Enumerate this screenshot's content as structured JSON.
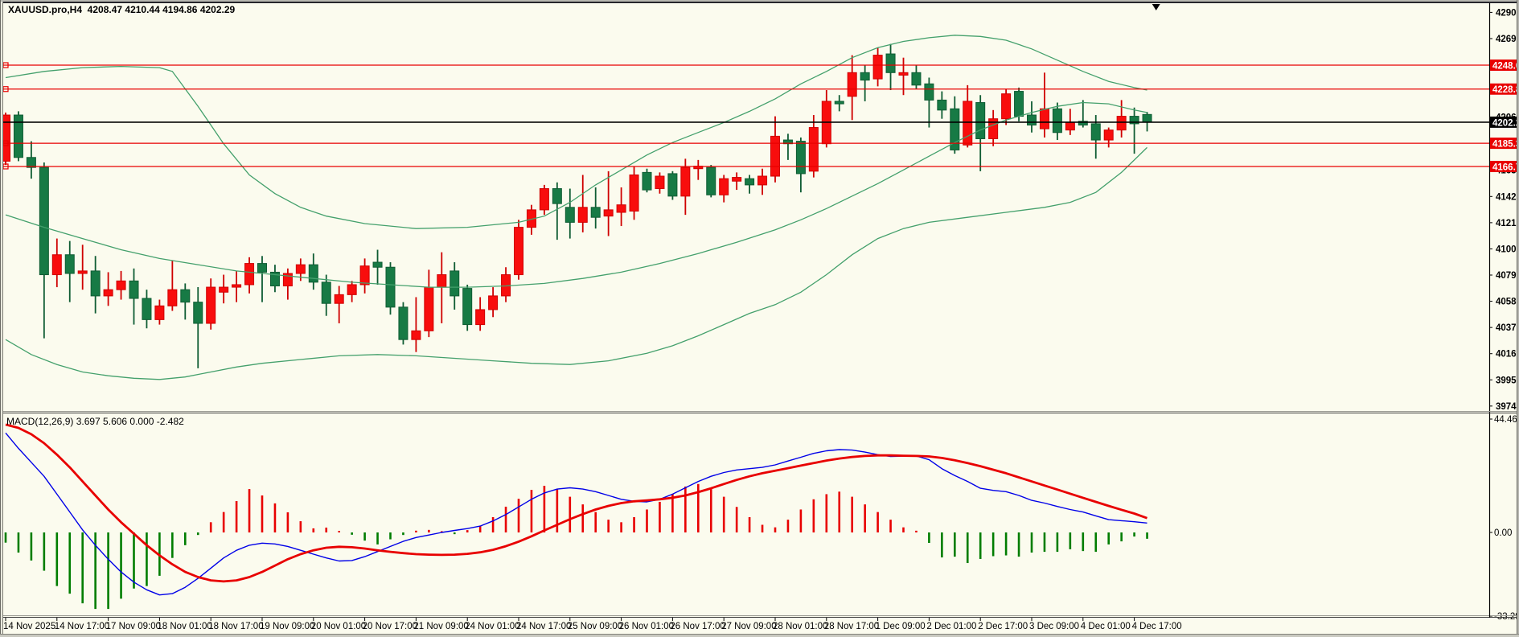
{
  "header": {
    "symbol": "XAUUSD.pro,H4",
    "ohlc_summary": "4208.47 4210.44 4194.86 4202.29"
  },
  "indicator_label": "MACD(12,26,9) 3.697 5.606 0.000 -2.482",
  "colors": {
    "background": "#fbfbee",
    "bull_fill": "#f80d0d",
    "bull_stroke": "#cf0000",
    "bear_fill": "#177a45",
    "bear_stroke": "#0f5c33",
    "bollinger": "#44a06c",
    "level_red": "#e80000",
    "current_price_line": "#000000",
    "macd_main": "#0000e8",
    "macd_signal": "#e80000",
    "hist_positive": "#e80000",
    "hist_negative": "#007d00",
    "axis_text": "#000000",
    "label_text": "#ffffff"
  },
  "chart_data": {
    "type": "candlestick",
    "title": "XAUUSD.pro,H4",
    "symbol": "XAUUSD.pro",
    "timeframe": "H4",
    "current_ohlc": {
      "open": 4208.47,
      "high": 4210.44,
      "low": 4194.86,
      "close": 4202.29
    },
    "ylim_main": [
      3965,
      4300
    ],
    "ylim_macd": [
      -33.296,
      44.466
    ],
    "grid": "off",
    "legend": "none",
    "time_labels": [
      "14 Nov 2025",
      "14 Nov 17:00",
      "17 Nov 09:00",
      "18 Nov 01:00",
      "18 Nov 17:00",
      "19 Nov 09:00",
      "20 Nov 01:00",
      "20 Nov 17:00",
      "21 Nov 09:00",
      "24 Nov 01:00",
      "24 Nov 17:00",
      "25 Nov 09:00",
      "26 Nov 01:00",
      "26 Nov 17:00",
      "27 Nov 09:00",
      "28 Nov 01:00",
      "28 Nov 17:00",
      "1 Dec 09:00",
      "2 Dec 01:00",
      "2 Dec 17:00",
      "3 Dec 09:00",
      "4 Dec 01:00",
      "4 Dec 17:00"
    ],
    "label_every_n_candles": 4,
    "candles": [
      [
        4171,
        4210,
        4168,
        4208
      ],
      [
        4208,
        4211,
        4171,
        4174
      ],
      [
        4174,
        4187,
        4157,
        4166
      ],
      [
        4166,
        4170,
        4029,
        4080
      ],
      [
        4080,
        4109,
        4070,
        4096
      ],
      [
        4096,
        4107,
        4058,
        4081
      ],
      [
        4081,
        4104,
        4068,
        4083
      ],
      [
        4083,
        4095,
        4049,
        4063
      ],
      [
        4063,
        4082,
        4055,
        4068
      ],
      [
        4068,
        4083,
        4060,
        4075
      ],
      [
        4075,
        4085,
        4040,
        4061
      ],
      [
        4061,
        4068,
        4037,
        4044
      ],
      [
        4044,
        4060,
        4040,
        4055
      ],
      [
        4055,
        4091,
        4051,
        4068
      ],
      [
        4068,
        4073,
        4044,
        4058
      ],
      [
        4058,
        4070,
        4005,
        4041
      ],
      [
        4041,
        4077,
        4036,
        4070
      ],
      [
        4066,
        4080,
        4057,
        4070
      ],
      [
        4070,
        4083,
        4058,
        4072
      ],
      [
        4072,
        4094,
        4065,
        4089
      ],
      [
        4089,
        4095,
        4058,
        4082
      ],
      [
        4082,
        4088,
        4066,
        4071
      ],
      [
        4071,
        4085,
        4060,
        4081
      ],
      [
        4081,
        4093,
        4075,
        4088
      ],
      [
        4088,
        4097,
        4068,
        4074
      ],
      [
        4074,
        4080,
        4047,
        4057
      ],
      [
        4057,
        4071,
        4041,
        4064
      ],
      [
        4064,
        4075,
        4058,
        4072
      ],
      [
        4072,
        4093,
        4065,
        4087
      ],
      [
        4090,
        4100,
        4072,
        4086
      ],
      [
        4086,
        4090,
        4048,
        4054
      ],
      [
        4054,
        4058,
        4024,
        4028
      ],
      [
        4028,
        4062,
        4018,
        4035
      ],
      [
        4035,
        4084,
        4030,
        4070
      ],
      [
        4070,
        4098,
        4041,
        4080
      ],
      [
        4083,
        4090,
        4052,
        4063
      ],
      [
        4069,
        4072,
        4035,
        4040
      ],
      [
        4040,
        4062,
        4035,
        4052
      ],
      [
        4052,
        4070,
        4046,
        4063
      ],
      [
        4063,
        4086,
        4058,
        4080
      ],
      [
        4080,
        4124,
        4076,
        4118
      ],
      [
        4118,
        4136,
        4112,
        4132
      ],
      [
        4132,
        4152,
        4128,
        4149
      ],
      [
        4149,
        4154,
        4108,
        4137
      ],
      [
        4134,
        4149,
        4109,
        4122
      ],
      [
        4122,
        4160,
        4114,
        4134
      ],
      [
        4134,
        4150,
        4117,
        4126
      ],
      [
        4127,
        4163,
        4111,
        4132
      ],
      [
        4130,
        4150,
        4119,
        4136
      ],
      [
        4131,
        4167,
        4124,
        4160
      ],
      [
        4162,
        4165,
        4146,
        4148
      ],
      [
        4149,
        4162,
        4145,
        4159
      ],
      [
        4161,
        4163,
        4140,
        4143
      ],
      [
        4143,
        4173,
        4128,
        4166
      ],
      [
        4165,
        4172,
        4156,
        4167
      ],
      [
        4166,
        4168,
        4142,
        4144
      ],
      [
        4144,
        4160,
        4138,
        4157
      ],
      [
        4155,
        4162,
        4148,
        4158
      ],
      [
        4157,
        4160,
        4145,
        4152
      ],
      [
        4152,
        4165,
        4144,
        4159
      ],
      [
        4159,
        4207,
        4154,
        4191
      ],
      [
        4188,
        4193,
        4172,
        4185
      ],
      [
        4187,
        4190,
        4146,
        4161
      ],
      [
        4163,
        4208,
        4158,
        4198
      ],
      [
        4185,
        4228,
        4182,
        4219
      ],
      [
        4219,
        4224,
        4211,
        4217
      ],
      [
        4223,
        4256,
        4204,
        4242
      ],
      [
        4242,
        4248,
        4219,
        4236
      ],
      [
        4237,
        4262,
        4231,
        4256
      ],
      [
        4257,
        4265,
        4228,
        4242
      ],
      [
        4240,
        4254,
        4224,
        4242
      ],
      [
        4242,
        4248,
        4229,
        4232
      ],
      [
        4233,
        4238,
        4198,
        4220
      ],
      [
        4220,
        4227,
        4205,
        4212
      ],
      [
        4213,
        4223,
        4177,
        4180
      ],
      [
        4184,
        4232,
        4182,
        4219
      ],
      [
        4218,
        4224,
        4163,
        4189
      ],
      [
        4189,
        4212,
        4183,
        4205
      ],
      [
        4205,
        4229,
        4200,
        4225
      ],
      [
        4227,
        4230,
        4203,
        4207
      ],
      [
        4208,
        4219,
        4194,
        4200
      ],
      [
        4197,
        4242,
        4190,
        4213
      ],
      [
        4213,
        4218,
        4188,
        4194
      ],
      [
        4196,
        4213,
        4192,
        4202
      ],
      [
        4203,
        4220,
        4198,
        4200
      ],
      [
        4201,
        4208,
        4173,
        4188
      ],
      [
        4188,
        4198,
        4182,
        4196
      ],
      [
        4196,
        4220,
        4190,
        4207
      ],
      [
        4207,
        4214,
        4177,
        4201
      ],
      [
        4208.47,
        4210.44,
        4194.86,
        4202.29
      ]
    ],
    "bollinger_bands": {
      "period_note": "three green lines over candles",
      "upper": [
        [
          0,
          4238
        ],
        [
          3,
          4243
        ],
        [
          6,
          4246
        ],
        [
          9,
          4247
        ],
        [
          12,
          4246
        ],
        [
          13,
          4243
        ],
        [
          15,
          4215
        ],
        [
          17,
          4185
        ],
        [
          19,
          4160
        ],
        [
          21,
          4145
        ],
        [
          23,
          4134
        ],
        [
          25,
          4127
        ],
        [
          28,
          4121
        ],
        [
          32,
          4117
        ],
        [
          36,
          4118
        ],
        [
          40,
          4122
        ],
        [
          42,
          4127
        ],
        [
          44,
          4138
        ],
        [
          46,
          4152
        ],
        [
          48,
          4164
        ],
        [
          50,
          4176
        ],
        [
          52,
          4186
        ],
        [
          54,
          4194
        ],
        [
          56,
          4202
        ],
        [
          58,
          4211
        ],
        [
          60,
          4221
        ],
        [
          62,
          4233
        ],
        [
          64,
          4243
        ],
        [
          66,
          4254
        ],
        [
          68,
          4262
        ],
        [
          70,
          4267
        ],
        [
          72,
          4270
        ],
        [
          74,
          4272
        ],
        [
          76,
          4271
        ],
        [
          78,
          4268
        ],
        [
          80,
          4261
        ],
        [
          82,
          4252
        ],
        [
          84,
          4243
        ],
        [
          86,
          4235
        ],
        [
          88,
          4230
        ],
        [
          89,
          4228
        ]
      ],
      "middle": [
        [
          0,
          4128
        ],
        [
          3,
          4118
        ],
        [
          6,
          4109
        ],
        [
          9,
          4100
        ],
        [
          12,
          4093
        ],
        [
          15,
          4088
        ],
        [
          18,
          4083
        ],
        [
          21,
          4080
        ],
        [
          24,
          4077
        ],
        [
          27,
          4074
        ],
        [
          30,
          4072
        ],
        [
          33,
          4070
        ],
        [
          36,
          4070
        ],
        [
          39,
          4071
        ],
        [
          42,
          4073
        ],
        [
          45,
          4077
        ],
        [
          48,
          4082
        ],
        [
          51,
          4089
        ],
        [
          54,
          4097
        ],
        [
          57,
          4106
        ],
        [
          60,
          4116
        ],
        [
          62,
          4124
        ],
        [
          64,
          4133
        ],
        [
          66,
          4143
        ],
        [
          68,
          4153
        ],
        [
          70,
          4164
        ],
        [
          72,
          4175
        ],
        [
          74,
          4186
        ],
        [
          76,
          4196
        ],
        [
          78,
          4204
        ],
        [
          80,
          4210
        ],
        [
          82,
          4215
        ],
        [
          84,
          4218
        ],
        [
          86,
          4217
        ],
        [
          88,
          4212
        ],
        [
          89,
          4210
        ]
      ],
      "lower": [
        [
          0,
          4028
        ],
        [
          2,
          4016
        ],
        [
          4,
          4008
        ],
        [
          6,
          4002
        ],
        [
          8,
          3999
        ],
        [
          10,
          3997
        ],
        [
          12,
          3996
        ],
        [
          14,
          3998
        ],
        [
          16,
          4002
        ],
        [
          18,
          4006
        ],
        [
          20,
          4009
        ],
        [
          23,
          4012
        ],
        [
          26,
          4015
        ],
        [
          29,
          4016
        ],
        [
          32,
          4015
        ],
        [
          35,
          4013
        ],
        [
          38,
          4011
        ],
        [
          41,
          4009
        ],
        [
          44,
          4008
        ],
        [
          47,
          4011
        ],
        [
          50,
          4017
        ],
        [
          52,
          4023
        ],
        [
          54,
          4031
        ],
        [
          56,
          4040
        ],
        [
          58,
          4049
        ],
        [
          60,
          4056
        ],
        [
          62,
          4066
        ],
        [
          64,
          4080
        ],
        [
          66,
          4096
        ],
        [
          68,
          4109
        ],
        [
          70,
          4117
        ],
        [
          72,
          4122
        ],
        [
          75,
          4126
        ],
        [
          78,
          4130
        ],
        [
          81,
          4134
        ],
        [
          83,
          4138
        ],
        [
          85,
          4146
        ],
        [
          87,
          4162
        ],
        [
          88,
          4172
        ],
        [
          89,
          4182
        ]
      ]
    },
    "levels": {
      "red_lines": [
        {
          "price": 4248.0,
          "label": "4248.00"
        },
        {
          "price": 4228.82,
          "label": "4228.82"
        },
        {
          "price": 4185.38,
          "label": "4185.38"
        },
        {
          "price": 4166.76,
          "label": "4166.76"
        }
      ],
      "current_price": {
        "price": 4202.29,
        "label": "4202.29"
      }
    },
    "y_axis_labels": [
      {
        "price": 4290.3,
        "text": "4290.30"
      },
      {
        "price": 4269.3,
        "text": "4269.30"
      },
      {
        "price": 4248.3,
        "text": "4248.30"
      },
      {
        "price": 4227.3,
        "text": "4227.30"
      },
      {
        "price": 4206.3,
        "text": "4206.30"
      },
      {
        "price": 4185.3,
        "text": "4185.30"
      },
      {
        "price": 4163.7,
        "text": "4163.70"
      },
      {
        "price": 4142.7,
        "text": "4142.70"
      },
      {
        "price": 4121.7,
        "text": "4121.70"
      },
      {
        "price": 4100.7,
        "text": "4100.70"
      },
      {
        "price": 4079.7,
        "text": "4079.70"
      },
      {
        "price": 4058.7,
        "text": "4058.70"
      },
      {
        "price": 4037.7,
        "text": "4037.70"
      },
      {
        "price": 4016.7,
        "text": "4016.70"
      },
      {
        "price": 3995.7,
        "text": "3995.70"
      },
      {
        "price": 3974.7,
        "text": "3974.70"
      }
    ],
    "macd": {
      "name": "MACD(12,26,9)",
      "current_values_text": "3.697 5.606 0.000 -2.482",
      "axis_labels": [
        {
          "value": 44.466,
          "text": "44.466"
        },
        {
          "value": 0.0,
          "text": "0.00"
        },
        {
          "value": -33.296,
          "text": "-33.296"
        }
      ],
      "main": [
        39.0,
        33.0,
        27.5,
        22.0,
        15.0,
        8.0,
        1.0,
        -5.0,
        -10.5,
        -15.5,
        -19.5,
        -22.5,
        -24.5,
        -24.0,
        -21.5,
        -18.0,
        -14.0,
        -10.0,
        -7.0,
        -5.0,
        -4.2,
        -4.5,
        -5.5,
        -7.0,
        -8.5,
        -10.0,
        -11.2,
        -11.0,
        -9.5,
        -7.5,
        -5.5,
        -3.5,
        -2.0,
        -1.0,
        0.0,
        0.8,
        1.5,
        2.5,
        4.5,
        7.0,
        10.0,
        13.0,
        15.5,
        17.0,
        17.5,
        17.0,
        16.0,
        14.5,
        13.0,
        12.2,
        12.0,
        13.0,
        15.0,
        17.5,
        20.0,
        22.0,
        23.5,
        24.5,
        25.0,
        25.5,
        26.5,
        28.0,
        29.5,
        31.0,
        32.0,
        32.5,
        32.3,
        31.5,
        30.5,
        29.8,
        29.9,
        30.0,
        28.5,
        25.0,
        22.3,
        20.0,
        17.3,
        16.5,
        16.0,
        14.5,
        12.6,
        11.5,
        10.2,
        9.0,
        8.0,
        6.5,
        5.0,
        4.6,
        4.2,
        3.697
      ],
      "signal": [
        42.3,
        41.0,
        38.5,
        35.0,
        30.5,
        25.5,
        20.0,
        14.5,
        9.0,
        4.0,
        -0.5,
        -5.0,
        -9.0,
        -12.5,
        -15.5,
        -17.5,
        -18.8,
        -19.2,
        -18.8,
        -17.5,
        -15.5,
        -13.0,
        -10.5,
        -8.5,
        -7.0,
        -6.0,
        -5.6,
        -5.8,
        -6.3,
        -7.0,
        -7.6,
        -8.1,
        -8.5,
        -8.7,
        -8.8,
        -8.7,
        -8.4,
        -7.8,
        -6.8,
        -5.4,
        -3.6,
        -1.5,
        0.8,
        3.0,
        5.2,
        7.2,
        9.0,
        10.4,
        11.5,
        12.2,
        12.6,
        13.0,
        13.6,
        14.5,
        15.8,
        17.3,
        19.0,
        20.6,
        22.0,
        23.2,
        24.2,
        25.2,
        26.2,
        27.2,
        28.2,
        29.0,
        29.6,
        30.0,
        30.2,
        30.2,
        30.1,
        30.0,
        29.8,
        29.2,
        28.3,
        27.2,
        26.0,
        24.6,
        23.2,
        21.6,
        20.0,
        18.4,
        16.8,
        15.2,
        13.6,
        12.0,
        10.4,
        8.9,
        7.4,
        5.606
      ],
      "histogram": [
        -4.0,
        -7.9,
        -11.0,
        -15.0,
        -21.0,
        -24.0,
        -27.8,
        -30.0,
        -30.0,
        -26.0,
        -22.0,
        -21.0,
        -17.0,
        -10.0,
        -5.0,
        -1.0,
        4.0,
        8.0,
        12.3,
        17.0,
        14.5,
        11.4,
        7.9,
        4.4,
        1.6,
        1.9,
        0.6,
        -0.9,
        -3.2,
        -4.7,
        -2.7,
        -1.0,
        0.7,
        1.0,
        0.5,
        -0.3,
        0.9,
        2.5,
        6.0,
        10.1,
        13.2,
        16.7,
        18.3,
        17.0,
        14.0,
        11.0,
        8.0,
        5.0,
        4.0,
        6.0,
        9.0,
        12.0,
        15.0,
        18.0,
        19.0,
        17.0,
        14.0,
        10.0,
        6.0,
        3.0,
        2.0,
        5.0,
        9.0,
        13.0,
        15.0,
        16.0,
        14.0,
        11.0,
        8.0,
        5.0,
        2.0,
        0.3,
        -4.1,
        -9.8,
        -9.5,
        -12.0,
        -10.4,
        -9.3,
        -9.0,
        -9.5,
        -7.9,
        -7.6,
        -7.6,
        -6.6,
        -7.3,
        -7.6,
        -4.7,
        -3.5,
        -1.6,
        -2.482
      ]
    }
  }
}
